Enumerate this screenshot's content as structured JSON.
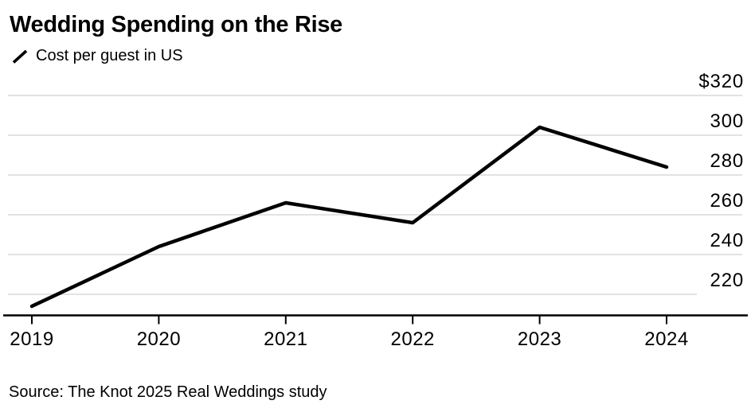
{
  "header": {
    "title": "Wedding Spending on the Rise",
    "legend_label": "Cost per guest in US"
  },
  "footer": {
    "source": "Source: The Knot 2025 Real Weddings study"
  },
  "chart_data": {
    "type": "line",
    "title": "Wedding Spending on the Rise",
    "series": [
      {
        "name": "Cost per guest in US",
        "values": [
          214,
          244,
          266,
          256,
          304,
          284
        ]
      }
    ],
    "x": [
      "2019",
      "2020",
      "2021",
      "2022",
      "2023",
      "2024"
    ],
    "y_ticks": [
      320,
      300,
      280,
      260,
      240,
      220
    ],
    "y_tick_prefix_top": "$",
    "ylim": [
      209,
      320
    ],
    "xlabel": "",
    "ylabel": "",
    "grid": "horizontal",
    "legend_position": "top-left",
    "line_color": "#000000",
    "grid_color": "#e2e2e2",
    "axis_color": "#000000",
    "label_color": "#000000"
  }
}
